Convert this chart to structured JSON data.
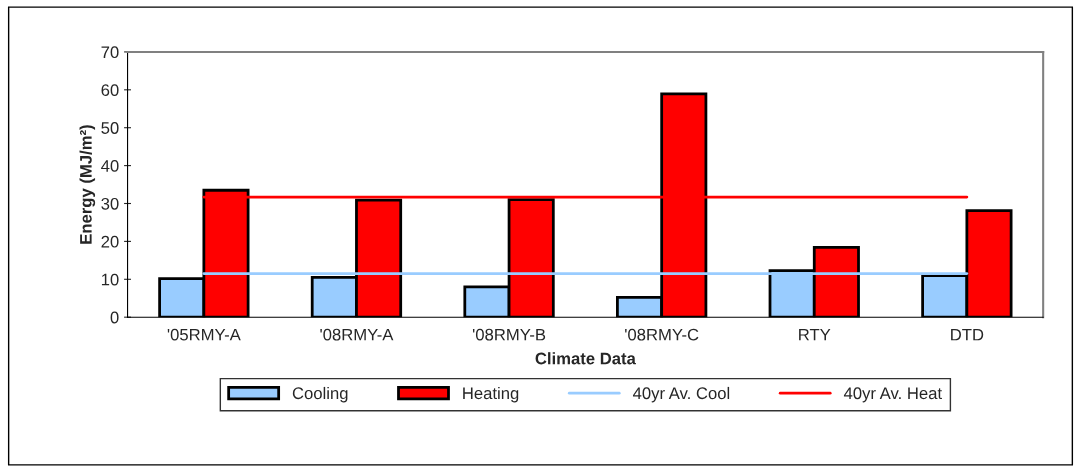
{
  "chart_data": {
    "type": "bar",
    "xlabel": "Climate Data",
    "ylabel": "Energy (MJ/m²)",
    "categories": [
      "'05RMY-A",
      "'08RMY-A",
      "'08RMY-B",
      "'08RMY-C",
      "RTY",
      "DTD"
    ],
    "series": [
      {
        "name": "Cooling",
        "color": "#99ccff",
        "values": [
          10.2,
          10.5,
          8.0,
          5.2,
          12.3,
          11.0
        ]
      },
      {
        "name": "Heating",
        "color": "#ff0000",
        "values": [
          33.5,
          30.9,
          31.0,
          58.9,
          18.4,
          28.1
        ]
      },
      {
        "name": "40yr Av. Cool",
        "type": "line",
        "color": "#99ccff",
        "values": [
          11.5,
          11.5,
          11.5,
          11.5,
          11.5,
          11.5
        ]
      },
      {
        "name": "40yr Av. Heat",
        "type": "line",
        "color": "#ff0000",
        "values": [
          31.7,
          31.7,
          31.7,
          31.7,
          31.7,
          31.7
        ]
      }
    ],
    "ylim": [
      0,
      70
    ],
    "yticks": [
      0,
      10,
      20,
      30,
      40,
      50,
      60,
      70
    ],
    "grid": false,
    "legend": "bottom"
  }
}
